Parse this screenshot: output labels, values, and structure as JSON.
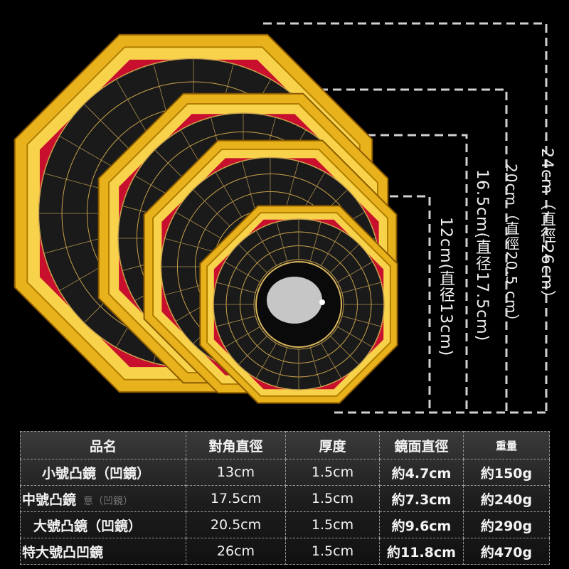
{
  "colors": {
    "gold": "#e8b21c",
    "red": "#c8102e",
    "dark": "#1a1a1a",
    "background": "#000000"
  },
  "dimension_labels": {
    "d24": "24cm（直徑26cm）",
    "d20": "20cm（直徑20.5 cm）",
    "d16_5": "16.5cm(直径17.5cm)",
    "d12": "12cm(直径13cm)"
  },
  "table": {
    "headers": [
      "品名",
      "對角直徑",
      "厚度",
      "鏡面直徑",
      "重量"
    ],
    "rows": [
      {
        "name": "小號凸鏡（凹鏡）",
        "ghost": "",
        "diag": "13cm",
        "thick": "1.5cm",
        "mirror": "約4.7cm",
        "weight": "約150g"
      },
      {
        "name": "中號凸鏡",
        "ghost": "意（凹鏡）",
        "diag": "17.5cm",
        "thick": "1.5cm",
        "mirror": "約7.3cm",
        "weight": "約240g"
      },
      {
        "name": "大號凸鏡（凹鏡）",
        "ghost": "",
        "diag": "20.5cm",
        "thick": "1.5cm",
        "mirror": "約9.6cm",
        "weight": "約290g"
      },
      {
        "name": "特大號凸凹鏡",
        "ghost": "",
        "diag": "26cm",
        "thick": "1.5cm",
        "mirror": "約11.8cm",
        "weight": "約470g"
      }
    ]
  }
}
